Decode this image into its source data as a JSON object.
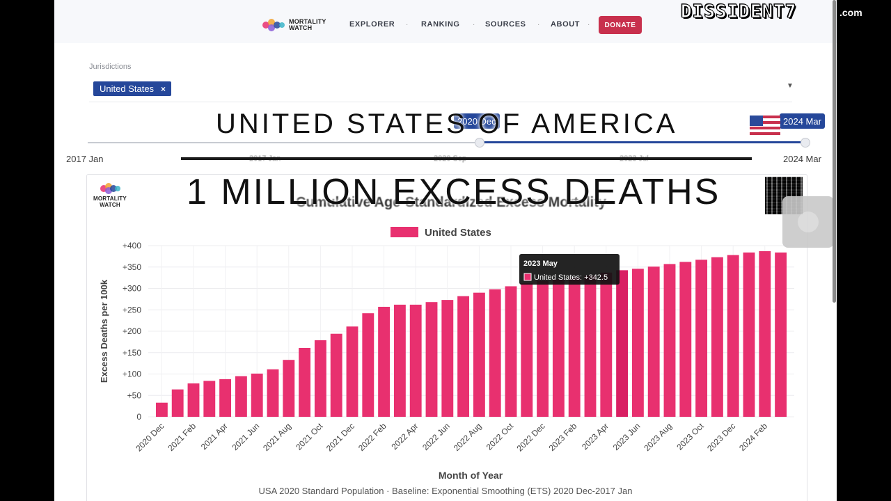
{
  "nav": {
    "logo_line1": "MORTALITY",
    "logo_line2": "WATCH",
    "links": [
      "EXPLORER",
      "RANKING",
      "SOURCES",
      "ABOUT"
    ],
    "donate": "DONATE"
  },
  "filters": {
    "jurisdictions_label": "Jurisdictions",
    "selected_jurisdiction": "United States",
    "remove_glyph": "×",
    "slider": {
      "min_label": "2017 Jan",
      "max_label": "2024 Mar",
      "from_value": "2020 Dec",
      "to_value": "2024 Mar",
      "intermediate_ticks": [
        "2017 Jan",
        "2020 Sep",
        "2023 Jul"
      ]
    }
  },
  "overlay": {
    "headline": "UNITED STATES OF AMERICA",
    "subheadline": "1 MILLION EXCESS DEATHS",
    "watermark": "DISSIDENT7",
    "watermark_suffix": ".com"
  },
  "chart_card": {
    "logo_line1": "MORTALITY",
    "logo_line2": "WATCH",
    "tooltip_title": "2023 May",
    "tooltip_body": "United States: +342.5",
    "footnote": "USA 2020 Standard Population · Baseline: Exponential Smoothing (ETS) 2020 Dec-2017 Jan"
  },
  "colors": {
    "bar": "#e8306f",
    "bar_highlight": "#d91f63",
    "accent_blue": "#25479a",
    "donate": "#c8304d"
  },
  "chart_data": {
    "type": "bar",
    "title": "Cumulative Age-Standardized Excess Mortality",
    "xlabel": "Month of Year",
    "ylabel": "Excess Deaths per 100k",
    "legend": [
      "United States"
    ],
    "legend_position": "top-center",
    "grid": true,
    "ylim": [
      0,
      400
    ],
    "y_ticks": [
      "0",
      "+50",
      "+100",
      "+150",
      "+200",
      "+250",
      "+300",
      "+350",
      "+400"
    ],
    "x_tick_labels": [
      "2020 Dec",
      "2021 Feb",
      "2021 Apr",
      "2021 Jun",
      "2021 Aug",
      "2021 Oct",
      "2021 Dec",
      "2022 Feb",
      "2022 Apr",
      "2022 Jun",
      "2022 Aug",
      "2022 Oct",
      "2022 Dec",
      "2023 Feb",
      "2023 Apr",
      "2023 Jun",
      "2023 Aug",
      "2023 Oct",
      "2023 Dec",
      "2024 Feb"
    ],
    "categories": [
      "2020 Dec",
      "2021 Jan",
      "2021 Feb",
      "2021 Mar",
      "2021 Apr",
      "2021 May",
      "2021 Jun",
      "2021 Jul",
      "2021 Aug",
      "2021 Sep",
      "2021 Oct",
      "2021 Nov",
      "2021 Dec",
      "2022 Jan",
      "2022 Feb",
      "2022 Mar",
      "2022 Apr",
      "2022 May",
      "2022 Jun",
      "2022 Jul",
      "2022 Aug",
      "2022 Sep",
      "2022 Oct",
      "2022 Nov",
      "2022 Dec",
      "2023 Jan",
      "2023 Feb",
      "2023 Mar",
      "2023 Apr",
      "2023 May",
      "2023 Jun",
      "2023 Jul",
      "2023 Aug",
      "2023 Sep",
      "2023 Oct",
      "2023 Nov",
      "2023 Dec",
      "2024 Jan",
      "2024 Feb",
      "2024 Mar"
    ],
    "series": [
      {
        "name": "United States",
        "values": [
          33,
          64,
          78,
          84,
          88,
          95,
          101,
          111,
          133,
          161,
          179,
          194,
          211,
          242,
          257,
          262,
          262,
          268,
          273,
          282,
          290,
          298,
          305,
          312,
          318,
          321,
          325,
          330,
          337,
          342.5,
          346,
          351,
          357,
          362,
          367,
          373,
          378,
          384,
          387,
          384
        ]
      }
    ],
    "highlighted_category": "2023 May"
  }
}
